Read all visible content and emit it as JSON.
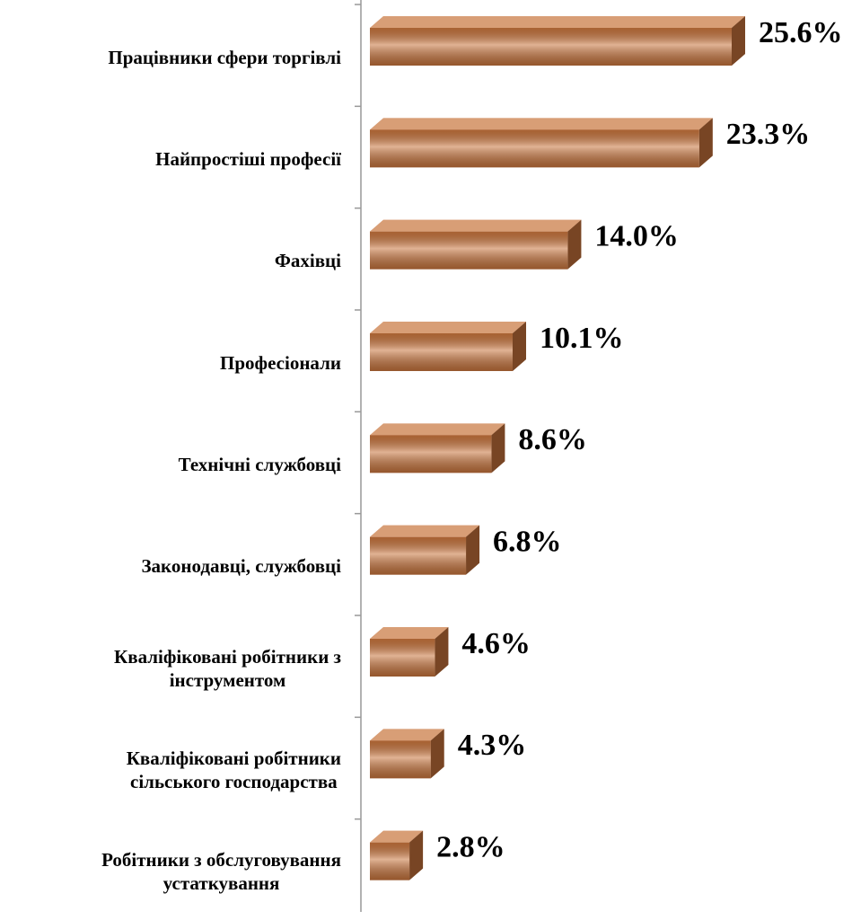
{
  "chart_data": {
    "type": "bar",
    "orientation": "horizontal",
    "categories": [
      "Працівники сфери торгівлі",
      "Найпростіші професії",
      "Фахівці",
      "Професіонали",
      "Технічні службовці",
      "Законодавці, службовці",
      "Кваліфіковані робітники з\nінструментом",
      "Кваліфіковані робітники\nсільського господарства",
      "Робітники з обслуговування\nустаткування"
    ],
    "values": [
      25.6,
      23.3,
      14.0,
      10.1,
      8.6,
      6.8,
      4.6,
      4.3,
      2.8
    ],
    "value_labels": [
      "25.6%",
      "23.3%",
      "14.0%",
      "10.1%",
      "8.6%",
      "6.8%",
      "4.6%",
      "4.3%",
      "2.8%"
    ],
    "color": "#c8743c"
  }
}
